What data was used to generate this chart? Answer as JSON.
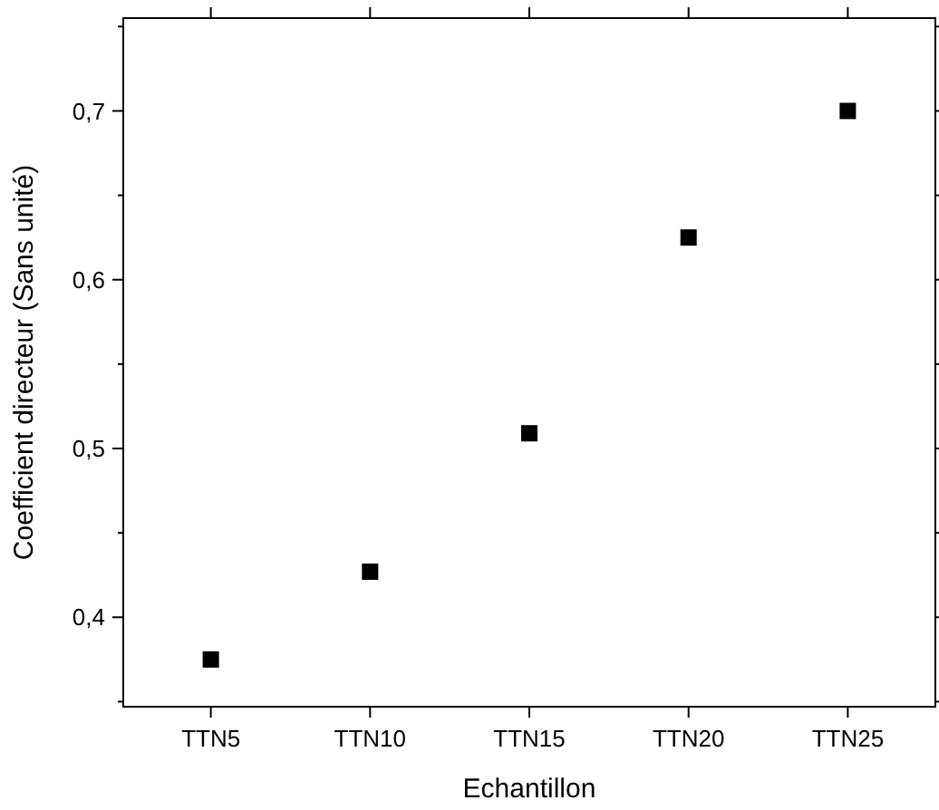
{
  "chart_data": {
    "type": "scatter",
    "xlabel": "Echantillon",
    "ylabel": "Coefficient directeur (Sans unité)",
    "categories": [
      "TTN5",
      "TTN10",
      "TTN15",
      "TTN20",
      "TTN25"
    ],
    "series": [
      {
        "color": "#000000",
        "values": [
          0.375,
          0.427,
          0.509,
          0.625,
          0.7
        ]
      }
    ],
    "ylim": [
      0.347,
      0.755
    ],
    "yticks": [
      {
        "value": 0.35,
        "label": null
      },
      {
        "value": 0.4,
        "label": "0,4"
      },
      {
        "value": 0.45,
        "label": null
      },
      {
        "value": 0.5,
        "label": "0,5"
      },
      {
        "value": 0.55,
        "label": null
      },
      {
        "value": 0.6,
        "label": "0,6"
      },
      {
        "value": 0.65,
        "label": null
      },
      {
        "value": 0.7,
        "label": "0,7"
      },
      {
        "value": 0.75,
        "label": null
      }
    ],
    "marker": "square"
  }
}
